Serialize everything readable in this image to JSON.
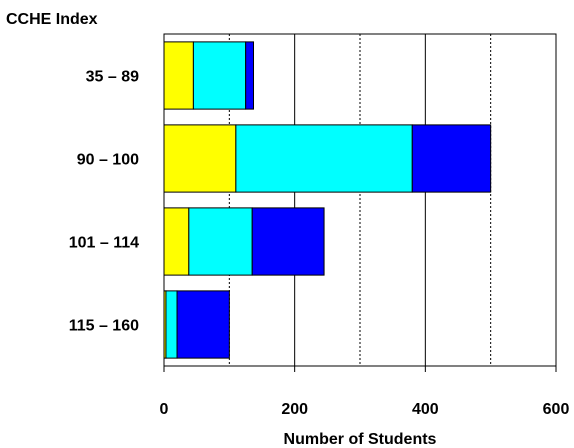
{
  "chart_data": {
    "type": "bar",
    "orientation": "horizontal",
    "stacked": true,
    "title": "",
    "ylabel": "CCHE Index",
    "xlabel": "Number of Students",
    "categories": [
      "35 – 89",
      "90 – 100",
      "101 – 114",
      "115 – 160"
    ],
    "series": [
      {
        "color": "#ffff00",
        "values": [
          45,
          110,
          38,
          3
        ]
      },
      {
        "color": "#00ffff",
        "values": [
          80,
          270,
          97,
          17
        ]
      },
      {
        "color": "#0000ff",
        "values": [
          12,
          120,
          110,
          80
        ]
      }
    ],
    "xlim": [
      0,
      600
    ],
    "xticks": [
      0,
      200,
      400,
      600
    ],
    "xtick_labels": [
      "0",
      "200",
      "400",
      "600"
    ],
    "major_gridlines": [
      200,
      400
    ],
    "minor_gridlines": [
      100,
      300,
      500
    ],
    "grid": true,
    "legend": "none"
  }
}
